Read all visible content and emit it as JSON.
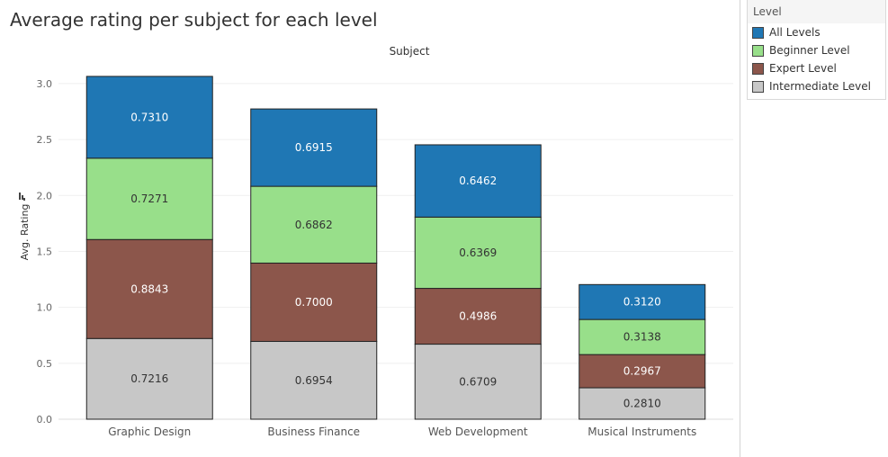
{
  "page": {
    "title": "Average rating per subject for each level"
  },
  "legend": {
    "title": "Level",
    "items": [
      {
        "label": "All Levels",
        "color": "#1f77b4"
      },
      {
        "label": "Beginner Level",
        "color": "#98df8a"
      },
      {
        "label": "Expert Level",
        "color": "#8c564b"
      },
      {
        "label": "Intermediate Level",
        "color": "#c7c7c7"
      }
    ]
  },
  "chart_data": {
    "type": "bar",
    "stacked": true,
    "title": "Average rating per subject for each level",
    "column_header": "Subject",
    "xlabel": "",
    "ylabel": "Avg. Rating",
    "ylim": [
      0,
      3.2
    ],
    "yticks": [
      "0.0",
      "0.5",
      "1.0",
      "1.5",
      "2.0",
      "2.5",
      "3.0"
    ],
    "grid": true,
    "legend_position": "right",
    "categories": [
      "Graphic Design",
      "Business Finance",
      "Web Development",
      "Musical Instruments"
    ],
    "series": [
      {
        "name": "Intermediate Level",
        "color": "#c7c7c7",
        "values": [
          0.7216,
          0.6954,
          0.6709,
          0.281
        ],
        "labels": [
          "0.7216",
          "0.6954",
          "0.6709",
          "0.2810"
        ]
      },
      {
        "name": "Expert Level",
        "color": "#8c564b",
        "values": [
          0.8843,
          0.7,
          0.4986,
          0.2967
        ],
        "labels": [
          "0.8843",
          "0.7000",
          "0.4986",
          "0.2967"
        ]
      },
      {
        "name": "Beginner Level",
        "color": "#98df8a",
        "values": [
          0.7271,
          0.6862,
          0.6369,
          0.3138
        ],
        "labels": [
          "0.7271",
          "0.6862",
          "0.6369",
          "0.3138"
        ]
      },
      {
        "name": "All Levels",
        "color": "#1f77b4",
        "values": [
          0.731,
          0.6915,
          0.6462,
          0.312
        ],
        "labels": [
          "0.7310",
          "0.6915",
          "0.6462",
          "0.3120"
        ]
      }
    ]
  }
}
